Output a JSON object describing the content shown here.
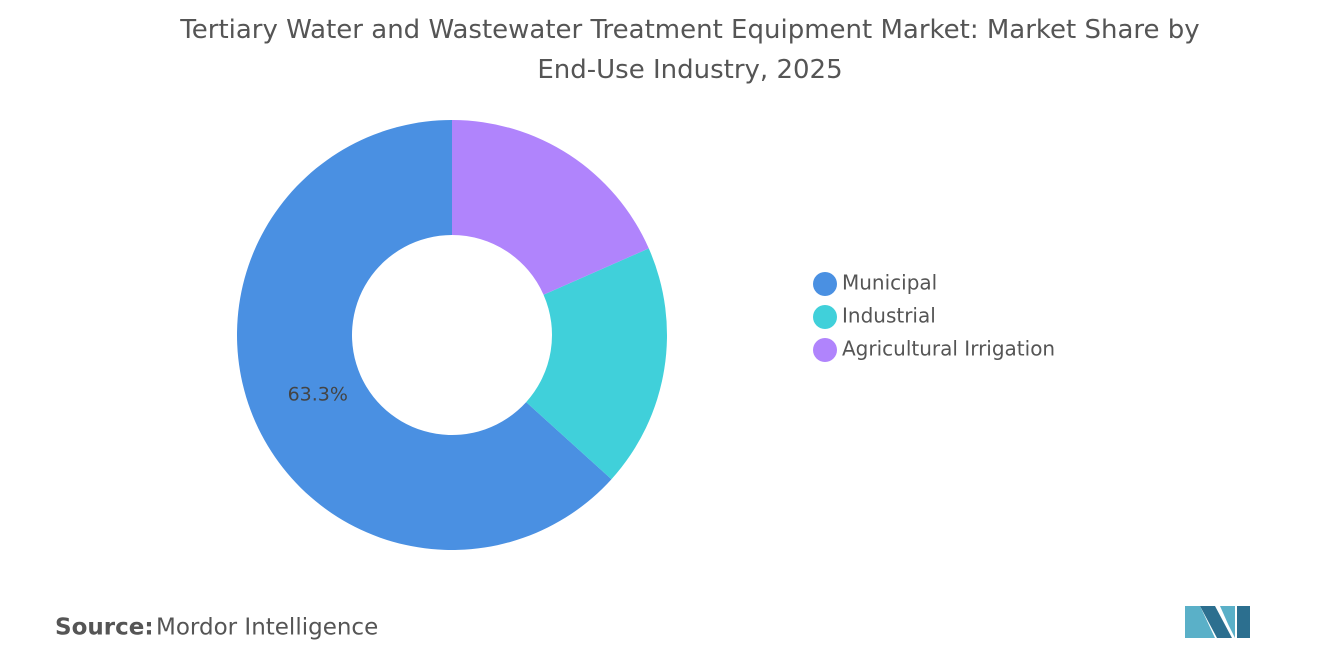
{
  "chart_data": {
    "type": "donut",
    "title": "Tertiary Water and Wastewater Treatment Equipment Market: Market Share by End-Use Industry, 2025",
    "categories": [
      "Municipal",
      "Industrial",
      "Agricultural Irrigation"
    ],
    "values": [
      63.3,
      18.3,
      18.4
    ],
    "value_labels": [
      "63.3%",
      null,
      null
    ],
    "colors": [
      "#4a90e2",
      "#40d0da",
      "#b084fc"
    ],
    "legend": "right",
    "source_label": "Source:",
    "source": "Mordor Intelligence"
  }
}
